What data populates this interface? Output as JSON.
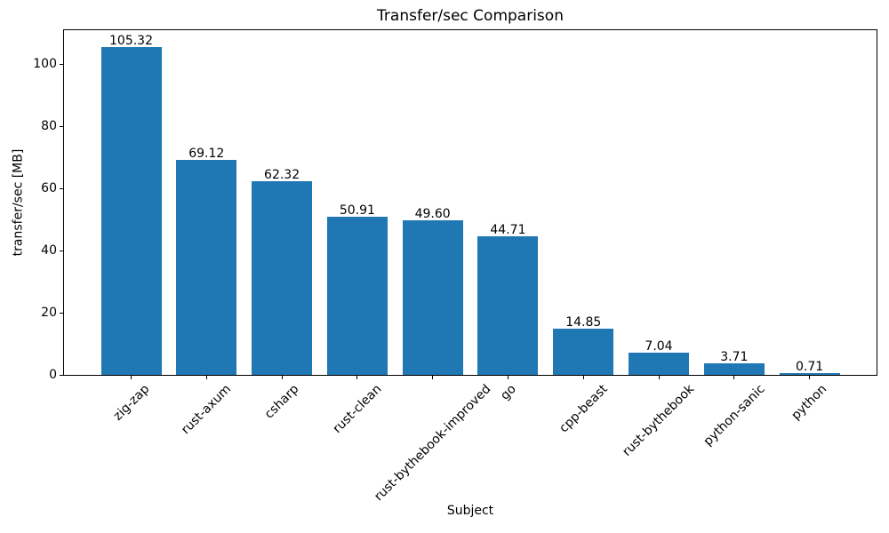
{
  "chart_data": {
    "type": "bar",
    "title": "Transfer/sec Comparison",
    "xlabel": "Subject",
    "ylabel": "transfer/sec [MB]",
    "categories": [
      "zig-zap",
      "rust-axum",
      "csharp",
      "rust-clean",
      "rust-bythebook-improved",
      "go",
      "cpp-beast",
      "rust-bythebook",
      "python-sanic",
      "python"
    ],
    "values": [
      105.32,
      69.12,
      62.32,
      50.91,
      49.6,
      44.71,
      14.85,
      7.04,
      3.71,
      0.71
    ],
    "value_labels": [
      "105.32",
      "69.12",
      "62.32",
      "50.91",
      "49.60",
      "44.71",
      "14.85",
      "7.04",
      "3.71",
      "0.71"
    ],
    "yticks": [
      0,
      20,
      40,
      60,
      80,
      100
    ],
    "ylim": [
      0,
      110.86
    ],
    "xtick_rotation_deg": 45,
    "bar_color": "#1f77b4",
    "grid": false,
    "legend": "none"
  }
}
